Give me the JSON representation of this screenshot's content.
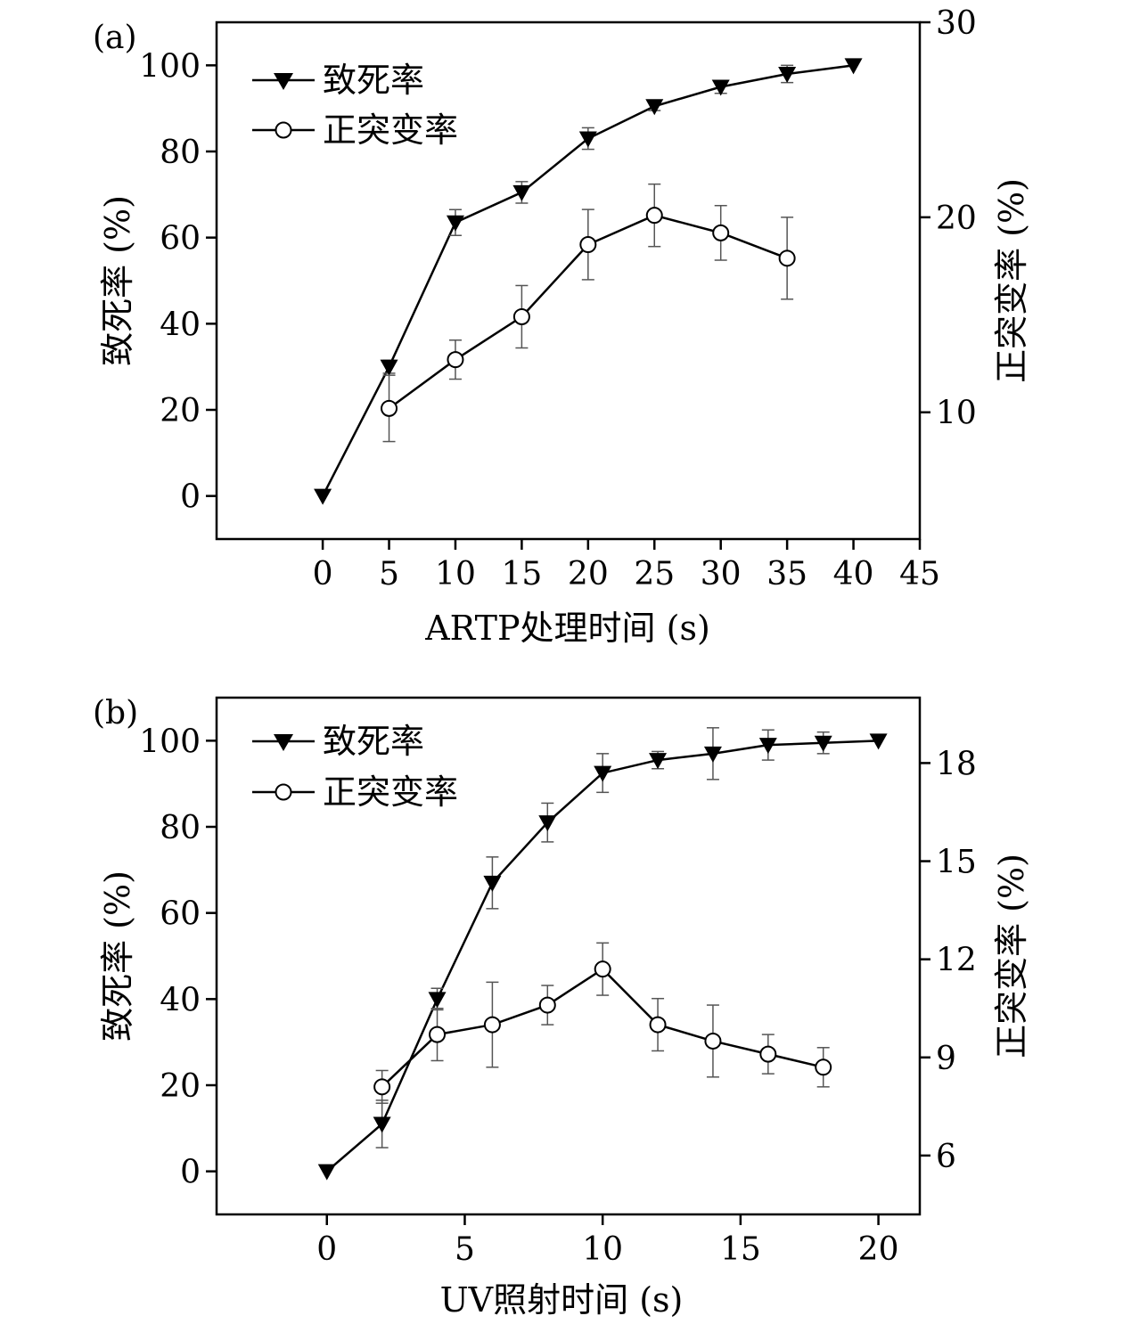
{
  "chart_data": [
    {
      "panel_label": "(a)",
      "type": "line",
      "xlabel": "ARTP处理时间 (s)",
      "ylabel": "致死率 (%)",
      "y2label": "正突变率 (%)",
      "xlim": [
        -8,
        45
      ],
      "ylim": [
        -10,
        110
      ],
      "y2lim": [
        3.5,
        30
      ],
      "xticks": [
        "0",
        "5",
        "10",
        "15",
        "20",
        "25",
        "30",
        "35",
        "40",
        "45"
      ],
      "yticks": [
        "0",
        "20",
        "40",
        "60",
        "80",
        "100"
      ],
      "y2ticks": [
        "10",
        "20",
        "30"
      ],
      "legend": [
        "致死率",
        "正突变率"
      ],
      "series": [
        {
          "name": "致死率",
          "axis": "left",
          "marker": "triangle-down-filled",
          "x": [
            0,
            5,
            10,
            15,
            20,
            25,
            30,
            35,
            40
          ],
          "y": [
            0,
            30,
            63.5,
            70.5,
            83,
            90.5,
            95,
            98,
            100
          ],
          "err": [
            0,
            1.5,
            3,
            2.5,
            2.5,
            1,
            1.5,
            2,
            0
          ]
        },
        {
          "name": "正突变率",
          "axis": "right",
          "marker": "circle-open",
          "x": [
            5,
            10,
            15,
            20,
            25,
            30,
            35
          ],
          "y": [
            10.2,
            12.7,
            14.9,
            18.6,
            20.1,
            19.2,
            17.9
          ],
          "err": [
            1.7,
            1,
            1.6,
            1.8,
            1.6,
            1.4,
            2.1
          ]
        }
      ]
    },
    {
      "panel_label": "(b)",
      "type": "line",
      "xlabel": "UV照射时间 (s)",
      "ylabel": "致死率 (%)",
      "y2label": "正突变率 (%)",
      "xlim": [
        -4,
        21.5
      ],
      "ylim": [
        -10,
        110
      ],
      "y2lim": [
        4.2,
        20
      ],
      "xticks": [
        "0",
        "5",
        "10",
        "15",
        "20"
      ],
      "yticks": [
        "0",
        "20",
        "40",
        "60",
        "80",
        "100"
      ],
      "y2ticks": [
        "6",
        "9",
        "12",
        "15",
        "18"
      ],
      "legend": [
        "致死率",
        "正突变率"
      ],
      "series": [
        {
          "name": "致死率",
          "axis": "left",
          "marker": "triangle-down-filled",
          "x": [
            0,
            2,
            4,
            6,
            8,
            10,
            12,
            14,
            16,
            18,
            20
          ],
          "y": [
            0,
            11,
            40,
            67,
            81,
            92.5,
            95.5,
            97,
            99,
            99.5,
            100
          ],
          "err": [
            0,
            5.5,
            2.5,
            6,
            4.5,
            4.5,
            2,
            6,
            3.5,
            2.5,
            0
          ]
        },
        {
          "name": "正突变率",
          "axis": "right",
          "marker": "circle-open",
          "x": [
            2,
            4,
            6,
            8,
            10,
            12,
            14,
            16,
            18
          ],
          "y": [
            8.1,
            9.7,
            10,
            10.6,
            11.7,
            10,
            9.5,
            9.1,
            8.7
          ],
          "err": [
            0.5,
            0.8,
            1.3,
            0.6,
            0.8,
            0.8,
            1.1,
            0.6,
            0.6
          ]
        }
      ]
    }
  ]
}
